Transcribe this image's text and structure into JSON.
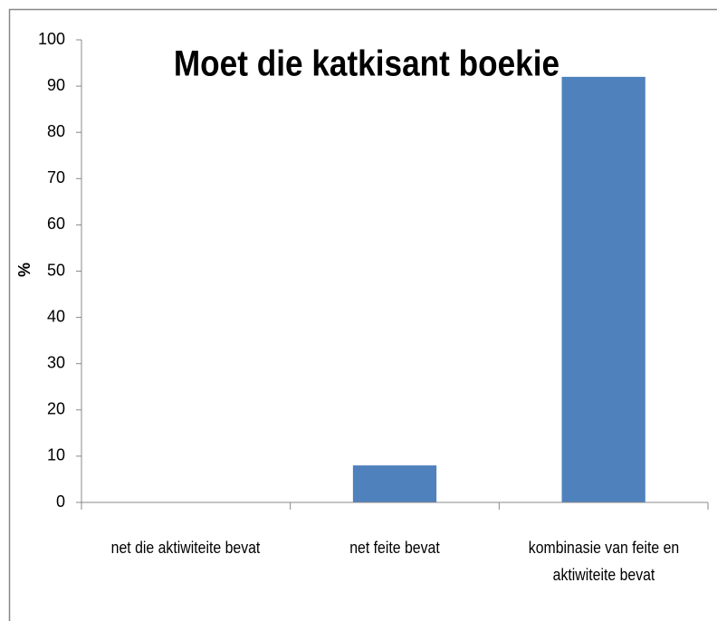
{
  "chart_data": {
    "type": "bar",
    "title": "Moet die katkisant boekie",
    "y_label": "%",
    "categories": [
      "net die aktiwiteite bevat",
      "net feite bevat",
      "kombinasie van feite en aktiwiteite bevat"
    ],
    "values": [
      0,
      8,
      92
    ],
    "color": "#4f81bd",
    "ylim": [
      0,
      100
    ],
    "yticks": [
      0,
      10,
      20,
      30,
      40,
      50,
      60,
      70,
      80,
      90,
      100
    ],
    "grid": false
  }
}
